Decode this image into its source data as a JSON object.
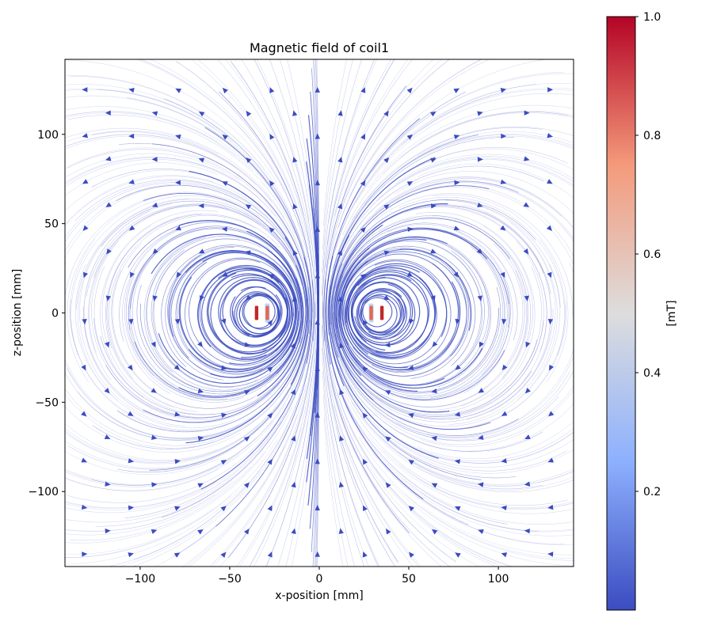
{
  "chart_data": {
    "type": "streamplot",
    "title": "Magnetic field of coil1",
    "xlabel": "x-position [mm]",
    "ylabel": "z-position [mm]",
    "xlim": [
      -142,
      142
    ],
    "ylim": [
      -142,
      142
    ],
    "xticks": [
      -100,
      -50,
      0,
      50,
      100
    ],
    "yticks": [
      -100,
      -50,
      0,
      50,
      100
    ],
    "xtick_labels": [
      "−100",
      "−50",
      "0",
      "50",
      "100"
    ],
    "ytick_labels": [
      "−100",
      "−50",
      "0",
      "50",
      "100"
    ],
    "grid": false,
    "coil": {
      "name": "coil1",
      "wire_cross_sections": [
        {
          "x": -35,
          "z": 0,
          "extent_z": [
            -4,
            4
          ]
        },
        {
          "x": -29,
          "z": 0,
          "extent_z": [
            -4,
            4
          ]
        },
        {
          "x": 29,
          "z": 0,
          "extent_z": [
            -4,
            4
          ]
        },
        {
          "x": 35,
          "z": 0,
          "extent_z": [
            -4,
            4
          ]
        }
      ]
    },
    "colorbar": {
      "label": "[mT]",
      "range": [
        0.0,
        1.0
      ],
      "ticks": [
        0.2,
        0.4,
        0.6,
        0.8,
        1.0
      ],
      "tick_labels": [
        "0.2",
        "0.4",
        "0.6",
        "0.8",
        "1.0"
      ],
      "colormap": "coolwarm",
      "colors": [
        "#3b4cc0",
        "#8db0fe",
        "#dddddd",
        "#f49a7b",
        "#b40426"
      ]
    },
    "field_line_color": "#3b4cc0"
  }
}
